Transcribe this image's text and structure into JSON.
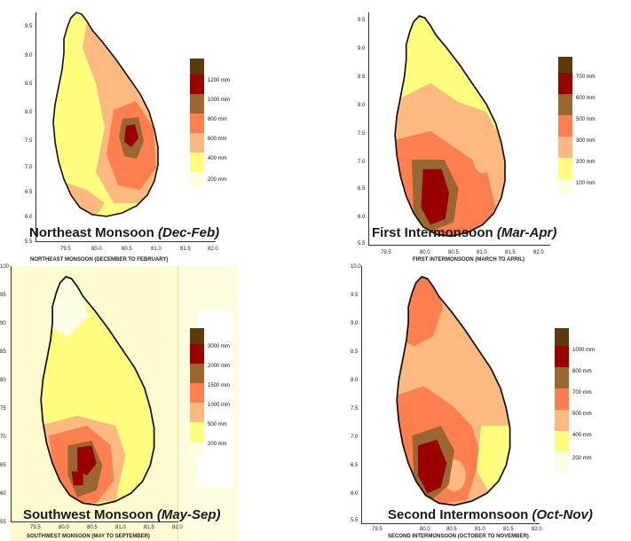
{
  "colors": {
    "c0": "#fefee4",
    "c1": "#fffe7e",
    "c2": "#fdb97f",
    "c3": "#fd7f4f",
    "c4": "#9a6632",
    "c5": "#990000",
    "c6": "#5e3a08",
    "sw_bg": "#fffbd0"
  },
  "panels": [
    {
      "id": "nem",
      "title_main": "Northeast Monsoon ",
      "title_season": "(Dec-Feb)",
      "subtitle": "NORTHEAST MONSOON (DECEMBER TO FEBRUARY)",
      "y_ticks": [
        "9.5",
        "9.0",
        "8.5",
        "8.0",
        "7.5",
        "7.0",
        "6.5",
        "6.0",
        "5.5"
      ],
      "x_ticks": [
        "79.5",
        "80.0",
        "80.5",
        "81.0",
        "81.5",
        "82.0"
      ],
      "legend": [
        "1200 mm",
        "1000 mm",
        "800  mm",
        "600  mm",
        "400  mm",
        "200  mm"
      ]
    },
    {
      "id": "fim",
      "title_main": "First Intermonsoon ",
      "title_season": "(Mar-Apr)",
      "subtitle": "FIRST INTERMONSOON (MARCH TO APRIL)",
      "y_ticks": [
        "9.5",
        "9.0",
        "8.5",
        "8.0",
        "7.5",
        "7.0",
        "6.5",
        "6.0",
        "5.5"
      ],
      "x_ticks": [
        "79.5",
        "80.0",
        "80.5",
        "81.0",
        "81.5",
        "82.0"
      ],
      "legend": [
        "700 mm",
        "600 mm",
        "500 mm",
        "300 mm",
        "200 mm",
        "100 mm"
      ]
    },
    {
      "id": "swm",
      "title_main": "Southwest Monsoon ",
      "title_season": "(May-Sep)",
      "subtitle": "SOUTHWEST MONSOON (MAY TO SEPTEMBER)",
      "y_ticks": [
        "100",
        "95",
        "90",
        "85",
        "80",
        "75",
        "70",
        "65",
        "60",
        "55"
      ],
      "x_ticks": [
        "79.5",
        "80.0",
        "80.5",
        "81.0",
        "81.5",
        "82.0"
      ],
      "legend": [
        "3000 mm",
        "2000 mm",
        "1500 mm",
        "1000 mm",
        "500 mm",
        "200 mm"
      ]
    },
    {
      "id": "sim",
      "title_main": "Second Intermonsoon ",
      "title_season": "(Oct-Nov)",
      "subtitle": "SECOND INTERMONSOON (OCTOBER TO NOVEMBER)",
      "y_ticks": [
        "10.0",
        "9.5",
        "9.0",
        "8.5",
        "8.0",
        "7.5",
        "7.0",
        "6.5",
        "6.0",
        "5.5"
      ],
      "x_ticks": [
        "79.5",
        "80.0",
        "80.5",
        "81.0",
        "81.5",
        "82.0"
      ],
      "legend": [
        "1000 mm",
        "800 mm",
        "700 mm",
        "500 mm",
        "400 mm",
        "200 mm"
      ]
    }
  ]
}
